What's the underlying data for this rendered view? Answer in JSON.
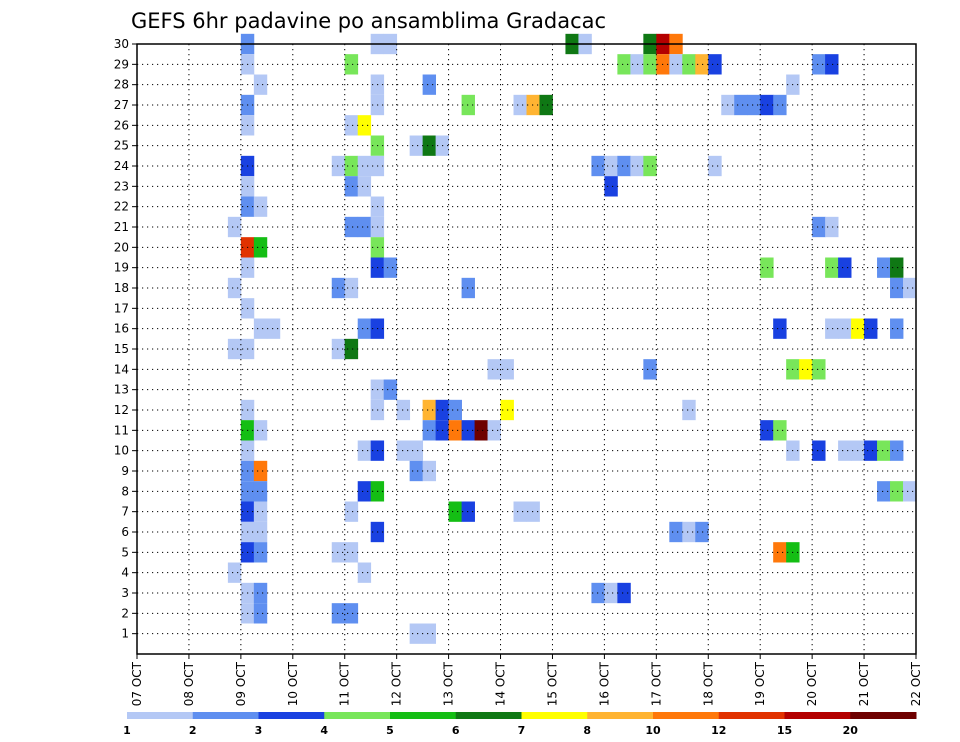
{
  "chart_data": {
    "type": "heatmap",
    "title": "GEFS 6hr padavine po ansamblima Gradacac",
    "x_tick_labels": [
      "07 OCT",
      "08 OCT",
      "09 OCT",
      "10 OCT",
      "11 OCT",
      "12 OCT",
      "13 OCT",
      "14 OCT",
      "15 OCT",
      "16 OCT",
      "17 OCT",
      "18 OCT",
      "19 OCT",
      "20 OCT",
      "21 OCT",
      "22 OCT"
    ],
    "y_tick_labels": [
      "1",
      "2",
      "3",
      "4",
      "5",
      "6",
      "7",
      "8",
      "9",
      "10",
      "11",
      "12",
      "13",
      "14",
      "15",
      "16",
      "17",
      "18",
      "19",
      "20",
      "21",
      "22",
      "23",
      "24",
      "25",
      "26",
      "27",
      "28",
      "29",
      "30"
    ],
    "x_range_days": [
      0,
      15
    ],
    "y_range": [
      0,
      30
    ],
    "grid": true,
    "legend_position": "bottom",
    "legend_labels": [
      "1",
      "2",
      "3",
      "4",
      "5",
      "6",
      "7",
      "8",
      "10",
      "12",
      "15",
      "20"
    ],
    "legend_colors": [
      "#b4c8f5",
      "#5f8ff0",
      "#1941e1",
      "#78e65a",
      "#14be14",
      "#0f7814",
      "#ffff00",
      "#ffb432",
      "#ff780a",
      "#e13200",
      "#b40000",
      "#6e0000"
    ],
    "cells_note": "each cell: [x_start_day, member, class_index]",
    "cells": [
      [
        2.0,
        30,
        1
      ],
      [
        4.5,
        30,
        0
      ],
      [
        4.75,
        30,
        0
      ],
      [
        8.25,
        30,
        5
      ],
      [
        8.5,
        30,
        0
      ],
      [
        9.75,
        30,
        5
      ],
      [
        10.0,
        30,
        10
      ],
      [
        10.25,
        30,
        8
      ],
      [
        2.0,
        29,
        0
      ],
      [
        4.0,
        29,
        3
      ],
      [
        9.25,
        29,
        3
      ],
      [
        9.5,
        29,
        0
      ],
      [
        9.75,
        29,
        3
      ],
      [
        10.0,
        29,
        8
      ],
      [
        10.25,
        29,
        0
      ],
      [
        10.5,
        29,
        3
      ],
      [
        10.75,
        29,
        7
      ],
      [
        11.0,
        29,
        2
      ],
      [
        13.0,
        29,
        1
      ],
      [
        13.25,
        29,
        2
      ],
      [
        2.25,
        28,
        0
      ],
      [
        4.5,
        28,
        0
      ],
      [
        5.5,
        28,
        1
      ],
      [
        12.5,
        28,
        0
      ],
      [
        2.0,
        27,
        1
      ],
      [
        4.5,
        27,
        0
      ],
      [
        6.25,
        27,
        3
      ],
      [
        7.25,
        27,
        0
      ],
      [
        7.5,
        27,
        7
      ],
      [
        7.75,
        27,
        5
      ],
      [
        11.25,
        27,
        0
      ],
      [
        11.5,
        27,
        1
      ],
      [
        11.75,
        27,
        1
      ],
      [
        12.0,
        27,
        2
      ],
      [
        12.25,
        27,
        1
      ],
      [
        2.0,
        26,
        0
      ],
      [
        4.0,
        26,
        0
      ],
      [
        4.25,
        26,
        6
      ],
      [
        4.5,
        25,
        3
      ],
      [
        5.25,
        25,
        0
      ],
      [
        5.5,
        25,
        5
      ],
      [
        5.75,
        25,
        0
      ],
      [
        2.0,
        24,
        2
      ],
      [
        3.75,
        24,
        0
      ],
      [
        4.0,
        24,
        3
      ],
      [
        4.25,
        24,
        0
      ],
      [
        4.5,
        24,
        0
      ],
      [
        8.75,
        24,
        1
      ],
      [
        9.0,
        24,
        0
      ],
      [
        9.25,
        24,
        1
      ],
      [
        9.5,
        24,
        0
      ],
      [
        9.75,
        24,
        3
      ],
      [
        11.0,
        24,
        0
      ],
      [
        2.0,
        23,
        0
      ],
      [
        4.0,
        23,
        1
      ],
      [
        4.25,
        23,
        0
      ],
      [
        9.0,
        23,
        2
      ],
      [
        2.0,
        22,
        1
      ],
      [
        2.25,
        22,
        0
      ],
      [
        4.5,
        22,
        0
      ],
      [
        1.75,
        21,
        0
      ],
      [
        4.0,
        21,
        1
      ],
      [
        4.25,
        21,
        1
      ],
      [
        4.5,
        21,
        0
      ],
      [
        13.0,
        21,
        1
      ],
      [
        13.25,
        21,
        0
      ],
      [
        2.0,
        20,
        9
      ],
      [
        2.25,
        20,
        4
      ],
      [
        4.5,
        20,
        3
      ],
      [
        2.0,
        19,
        0
      ],
      [
        4.5,
        19,
        2
      ],
      [
        4.75,
        19,
        1
      ],
      [
        12.0,
        19,
        3
      ],
      [
        13.25,
        19,
        3
      ],
      [
        13.5,
        19,
        2
      ],
      [
        14.25,
        19,
        1
      ],
      [
        14.5,
        19,
        5
      ],
      [
        1.75,
        18,
        0
      ],
      [
        3.75,
        18,
        1
      ],
      [
        4.0,
        18,
        0
      ],
      [
        6.25,
        18,
        1
      ],
      [
        14.5,
        18,
        1
      ],
      [
        14.75,
        18,
        0
      ],
      [
        2.0,
        17,
        0
      ],
      [
        2.25,
        16,
        0
      ],
      [
        2.5,
        16,
        0
      ],
      [
        4.25,
        16,
        1
      ],
      [
        4.5,
        16,
        2
      ],
      [
        12.25,
        16,
        2
      ],
      [
        13.25,
        16,
        0
      ],
      [
        13.5,
        16,
        0
      ],
      [
        13.75,
        16,
        6
      ],
      [
        14.0,
        16,
        2
      ],
      [
        14.5,
        16,
        1
      ],
      [
        1.75,
        15,
        0
      ],
      [
        2.0,
        15,
        0
      ],
      [
        3.75,
        15,
        0
      ],
      [
        4.0,
        15,
        5
      ],
      [
        6.75,
        14,
        0
      ],
      [
        7.0,
        14,
        0
      ],
      [
        9.75,
        14,
        1
      ],
      [
        12.5,
        14,
        3
      ],
      [
        12.75,
        14,
        6
      ],
      [
        13.0,
        14,
        3
      ],
      [
        4.5,
        13,
        0
      ],
      [
        4.75,
        13,
        1
      ],
      [
        2.0,
        12,
        0
      ],
      [
        4.5,
        12,
        0
      ],
      [
        5.0,
        12,
        0
      ],
      [
        5.5,
        12,
        7
      ],
      [
        5.75,
        12,
        2
      ],
      [
        6.0,
        12,
        1
      ],
      [
        7.0,
        12,
        6
      ],
      [
        10.5,
        12,
        0
      ],
      [
        2.0,
        11,
        4
      ],
      [
        2.25,
        11,
        0
      ],
      [
        5.5,
        11,
        1
      ],
      [
        5.75,
        11,
        2
      ],
      [
        6.0,
        11,
        8
      ],
      [
        6.25,
        11,
        2
      ],
      [
        6.5,
        11,
        11
      ],
      [
        6.75,
        11,
        0
      ],
      [
        12.0,
        11,
        2
      ],
      [
        12.25,
        11,
        3
      ],
      [
        2.0,
        10,
        0
      ],
      [
        4.25,
        10,
        0
      ],
      [
        4.5,
        10,
        2
      ],
      [
        5.0,
        10,
        0
      ],
      [
        5.25,
        10,
        0
      ],
      [
        12.5,
        10,
        0
      ],
      [
        13.0,
        10,
        2
      ],
      [
        13.5,
        10,
        0
      ],
      [
        13.75,
        10,
        0
      ],
      [
        14.0,
        10,
        2
      ],
      [
        14.25,
        10,
        3
      ],
      [
        14.5,
        10,
        1
      ],
      [
        2.0,
        9,
        1
      ],
      [
        2.25,
        9,
        8
      ],
      [
        5.25,
        9,
        1
      ],
      [
        5.5,
        9,
        0
      ],
      [
        2.0,
        8,
        1
      ],
      [
        2.25,
        8,
        1
      ],
      [
        4.25,
        8,
        2
      ],
      [
        4.5,
        8,
        4
      ],
      [
        14.25,
        8,
        1
      ],
      [
        14.5,
        8,
        3
      ],
      [
        14.75,
        8,
        0
      ],
      [
        2.0,
        7,
        2
      ],
      [
        2.25,
        7,
        0
      ],
      [
        4.0,
        7,
        0
      ],
      [
        6.0,
        7,
        4
      ],
      [
        6.25,
        7,
        2
      ],
      [
        7.25,
        7,
        0
      ],
      [
        7.5,
        7,
        0
      ],
      [
        2.0,
        6,
        0
      ],
      [
        2.25,
        6,
        0
      ],
      [
        4.5,
        6,
        2
      ],
      [
        10.25,
        6,
        1
      ],
      [
        10.5,
        6,
        0
      ],
      [
        10.75,
        6,
        1
      ],
      [
        2.0,
        5,
        2
      ],
      [
        2.25,
        5,
        1
      ],
      [
        3.75,
        5,
        0
      ],
      [
        4.0,
        5,
        0
      ],
      [
        12.25,
        5,
        8
      ],
      [
        12.5,
        5,
        4
      ],
      [
        1.75,
        4,
        0
      ],
      [
        4.25,
        4,
        0
      ],
      [
        2.0,
        3,
        0
      ],
      [
        2.25,
        3,
        1
      ],
      [
        8.75,
        3,
        1
      ],
      [
        9.0,
        3,
        0
      ],
      [
        9.25,
        3,
        2
      ],
      [
        2.0,
        2,
        0
      ],
      [
        2.25,
        2,
        1
      ],
      [
        3.75,
        2,
        1
      ],
      [
        4.0,
        2,
        1
      ],
      [
        5.25,
        1,
        0
      ],
      [
        5.5,
        1,
        0
      ]
    ]
  }
}
